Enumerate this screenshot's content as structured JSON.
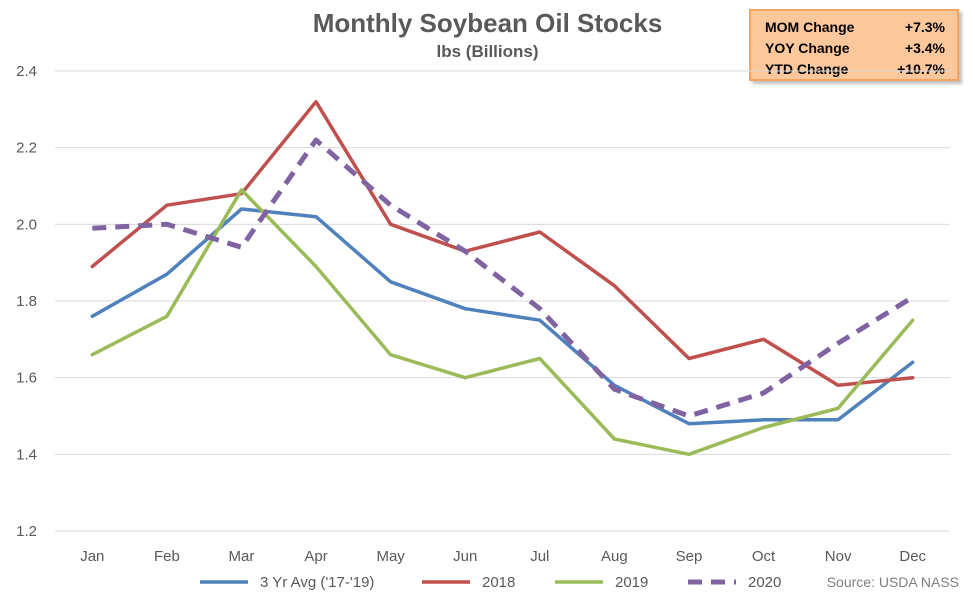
{
  "title": "Monthly Soybean Oil Stocks",
  "subtitle": "lbs (Billions)",
  "change_box": {
    "rows": [
      {
        "label": "MOM Change",
        "value": "+7.3%"
      },
      {
        "label": "YOY Change",
        "value": "+3.4%"
      },
      {
        "label": "YTD Change",
        "value": "+10.7%"
      }
    ]
  },
  "source": "Source: USDA NASS",
  "chart_data": {
    "type": "line",
    "title": "Monthly Soybean Oil Stocks",
    "subtitle": "lbs (Billions)",
    "xlabel": "",
    "ylabel": "",
    "categories": [
      "Jan",
      "Feb",
      "Mar",
      "Apr",
      "May",
      "Jun",
      "Jul",
      "Aug",
      "Sep",
      "Oct",
      "Nov",
      "Dec"
    ],
    "ylim": [
      1.2,
      2.4
    ],
    "yticks": [
      "1.2",
      "1.4",
      "1.6",
      "1.8",
      "2.0",
      "2.2",
      "2.4"
    ],
    "grid": true,
    "legend_position": "bottom",
    "series": [
      {
        "name": "3 Yr Avg ('17-'19)",
        "color": "#4f81bd",
        "dash": false,
        "values": [
          1.76,
          1.87,
          2.04,
          2.02,
          1.85,
          1.78,
          1.75,
          1.58,
          1.48,
          1.49,
          1.49,
          1.64
        ]
      },
      {
        "name": "2018",
        "color": "#c0504d",
        "dash": false,
        "values": [
          1.89,
          2.05,
          2.08,
          2.32,
          2.0,
          1.93,
          1.98,
          1.84,
          1.65,
          1.7,
          1.58,
          1.6
        ]
      },
      {
        "name": "2019",
        "color": "#9bbb59",
        "dash": false,
        "values": [
          1.66,
          1.76,
          2.09,
          1.89,
          1.66,
          1.6,
          1.65,
          1.44,
          1.4,
          1.47,
          1.52,
          1.75
        ]
      },
      {
        "name": "2020",
        "color": "#8064a2",
        "dash": true,
        "values": [
          1.99,
          2.0,
          1.94,
          2.22,
          2.05,
          1.93,
          1.78,
          1.57,
          1.5,
          1.56,
          1.69,
          1.81
        ]
      }
    ]
  }
}
